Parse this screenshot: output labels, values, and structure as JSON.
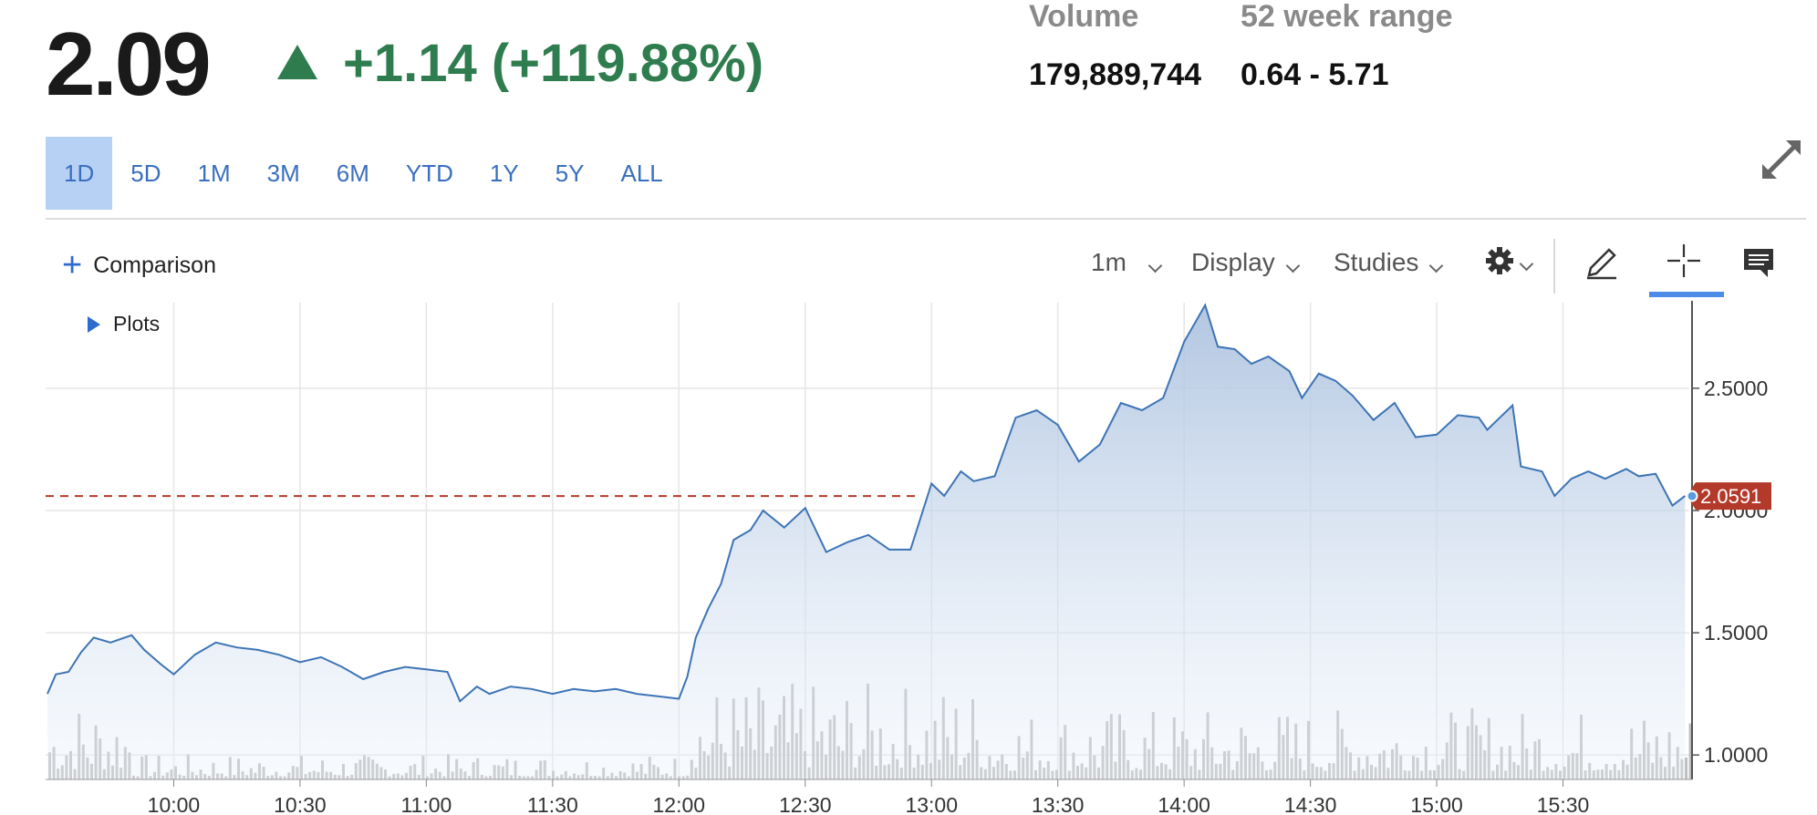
{
  "quote": {
    "price": "2.09",
    "change": "+1.14 (+119.88%)",
    "volume_label": "Volume",
    "volume_value": "179,889,744",
    "range_label": "52 week range",
    "range_value": "0.64 - 5.71"
  },
  "colors": {
    "up": "#2f7d4f",
    "accent": "#3a6fbf",
    "line": "#3d74b5",
    "last_price": "#b33a2a",
    "volume_bar": "#bdbdbd"
  },
  "ranges": {
    "active": "1D",
    "items": [
      "1D",
      "5D",
      "1M",
      "3M",
      "6M",
      "YTD",
      "1Y",
      "5Y",
      "ALL"
    ]
  },
  "toolbar": {
    "comparison": "Comparison",
    "interval": "1m",
    "display": "Display",
    "studies": "Studies",
    "plots": "Plots"
  },
  "icons": [
    "triangle-up-icon",
    "expand-icon",
    "plus-icon",
    "chevron-down-icon",
    "gear-icon",
    "pencil-icon",
    "crosshair-icon",
    "comment-icon",
    "play-triangle-icon"
  ],
  "chart_data": {
    "type": "area",
    "x_ticks": [
      "10:00",
      "10:30",
      "11:00",
      "11:30",
      "12:00",
      "12:30",
      "13:00",
      "13:30",
      "14:00",
      "14:30",
      "15:00",
      "15:30"
    ],
    "y_ticks": [
      "1.0000",
      "1.5000",
      "2.0000",
      "2.5000"
    ],
    "ylim": [
      0.9,
      2.85
    ],
    "last_price": 2.0591,
    "last_price_label": "2.0591",
    "grid": true,
    "price_series": [
      [
        "09:30",
        1.25
      ],
      [
        "09:32",
        1.33
      ],
      [
        "09:35",
        1.34
      ],
      [
        "09:38",
        1.42
      ],
      [
        "09:41",
        1.48
      ],
      [
        "09:45",
        1.46
      ],
      [
        "09:50",
        1.49
      ],
      [
        "09:53",
        1.43
      ],
      [
        "09:57",
        1.37
      ],
      [
        "10:00",
        1.33
      ],
      [
        "10:05",
        1.41
      ],
      [
        "10:10",
        1.46
      ],
      [
        "10:15",
        1.44
      ],
      [
        "10:20",
        1.43
      ],
      [
        "10:25",
        1.41
      ],
      [
        "10:30",
        1.38
      ],
      [
        "10:35",
        1.4
      ],
      [
        "10:40",
        1.36
      ],
      [
        "10:45",
        1.31
      ],
      [
        "10:50",
        1.34
      ],
      [
        "10:55",
        1.36
      ],
      [
        "11:00",
        1.35
      ],
      [
        "11:05",
        1.34
      ],
      [
        "11:08",
        1.22
      ],
      [
        "11:12",
        1.28
      ],
      [
        "11:15",
        1.25
      ],
      [
        "11:20",
        1.28
      ],
      [
        "11:25",
        1.27
      ],
      [
        "11:30",
        1.25
      ],
      [
        "11:35",
        1.27
      ],
      [
        "11:40",
        1.26
      ],
      [
        "11:45",
        1.27
      ],
      [
        "11:50",
        1.25
      ],
      [
        "11:55",
        1.24
      ],
      [
        "12:00",
        1.23
      ],
      [
        "12:02",
        1.32
      ],
      [
        "12:04",
        1.48
      ],
      [
        "12:07",
        1.6
      ],
      [
        "12:10",
        1.7
      ],
      [
        "12:13",
        1.88
      ],
      [
        "12:17",
        1.92
      ],
      [
        "12:20",
        2.0
      ],
      [
        "12:25",
        1.93
      ],
      [
        "12:30",
        2.01
      ],
      [
        "12:35",
        1.83
      ],
      [
        "12:40",
        1.87
      ],
      [
        "12:45",
        1.9
      ],
      [
        "12:50",
        1.84
      ],
      [
        "12:55",
        1.84
      ],
      [
        "13:00",
        2.11
      ],
      [
        "13:03",
        2.06
      ],
      [
        "13:07",
        2.16
      ],
      [
        "13:10",
        2.12
      ],
      [
        "13:15",
        2.14
      ],
      [
        "13:20",
        2.38
      ],
      [
        "13:25",
        2.41
      ],
      [
        "13:30",
        2.35
      ],
      [
        "13:35",
        2.2
      ],
      [
        "13:40",
        2.27
      ],
      [
        "13:45",
        2.44
      ],
      [
        "13:50",
        2.41
      ],
      [
        "13:55",
        2.46
      ],
      [
        "14:00",
        2.69
      ],
      [
        "14:05",
        2.84
      ],
      [
        "14:08",
        2.67
      ],
      [
        "14:12",
        2.66
      ],
      [
        "14:16",
        2.6
      ],
      [
        "14:20",
        2.63
      ],
      [
        "14:25",
        2.57
      ],
      [
        "14:28",
        2.46
      ],
      [
        "14:32",
        2.56
      ],
      [
        "14:36",
        2.53
      ],
      [
        "14:40",
        2.47
      ],
      [
        "14:45",
        2.37
      ],
      [
        "14:50",
        2.44
      ],
      [
        "14:55",
        2.3
      ],
      [
        "15:00",
        2.31
      ],
      [
        "15:05",
        2.39
      ],
      [
        "15:10",
        2.38
      ],
      [
        "15:12",
        2.33
      ],
      [
        "15:18",
        2.43
      ],
      [
        "15:20",
        2.18
      ],
      [
        "15:25",
        2.16
      ],
      [
        "15:28",
        2.06
      ],
      [
        "15:32",
        2.13
      ],
      [
        "15:36",
        2.16
      ],
      [
        "15:40",
        2.13
      ],
      [
        "15:45",
        2.17
      ],
      [
        "15:48",
        2.14
      ],
      [
        "15:52",
        2.15
      ],
      [
        "15:56",
        2.02
      ],
      [
        "15:59",
        2.06
      ]
    ]
  }
}
